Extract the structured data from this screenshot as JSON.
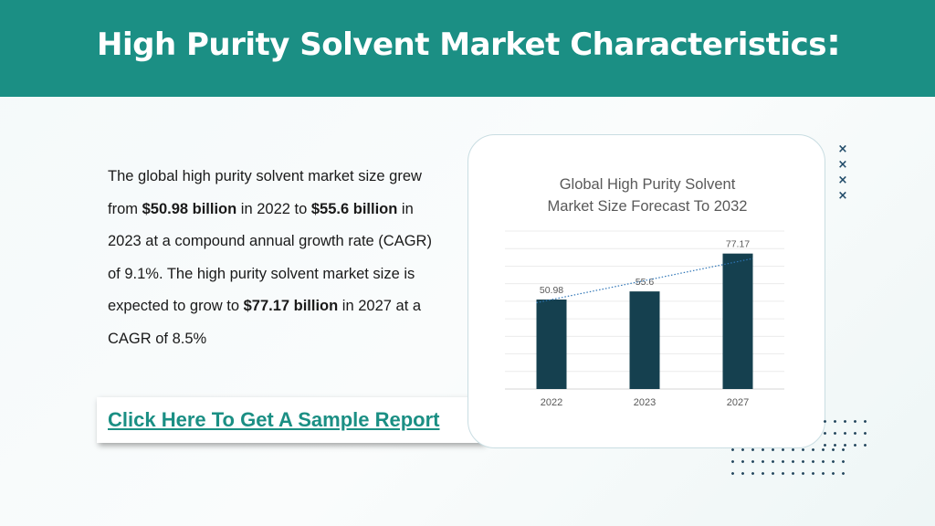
{
  "header": {
    "title": "High Purity Solvent Market Characteristics",
    "title_colon": ":"
  },
  "content": {
    "p1": "The global high purity solvent market size grew from ",
    "b1": "$50.98 billion",
    "p2": " in 2022 to ",
    "b2": "$55.6 billion",
    "p3": " in 2023 at a compound annual growth rate (CAGR) of 9.1%. The high purity solvent market size is expected to grow to ",
    "b3": "$77.17 billion",
    "p4": " in 2027 at a CAGR of 8.5%"
  },
  "cta": {
    "label": "Click Here To Get A Sample Report"
  },
  "decor": {
    "x_marks": [
      "×",
      "×",
      "×",
      "×"
    ]
  },
  "colors": {
    "header_bg": "#1b8f84",
    "accent": "#1b8f84",
    "bar": "#15404f",
    "trendline": "#2e75b6"
  },
  "chart_data": {
    "type": "bar",
    "title": "Global High Purity Solvent Market Size Forecast To 2032",
    "title_lines": [
      "Global High Purity Solvent",
      "Market Size Forecast To 2032"
    ],
    "categories": [
      "2022",
      "2023",
      "2027"
    ],
    "values": [
      50.98,
      55.6,
      77.17
    ],
    "data_labels": [
      "50.98",
      "55.6",
      "77.17"
    ],
    "ylim": [
      0,
      90
    ],
    "grid": true,
    "trendline": "linear, dotted",
    "xlabel": "",
    "ylabel": ""
  }
}
